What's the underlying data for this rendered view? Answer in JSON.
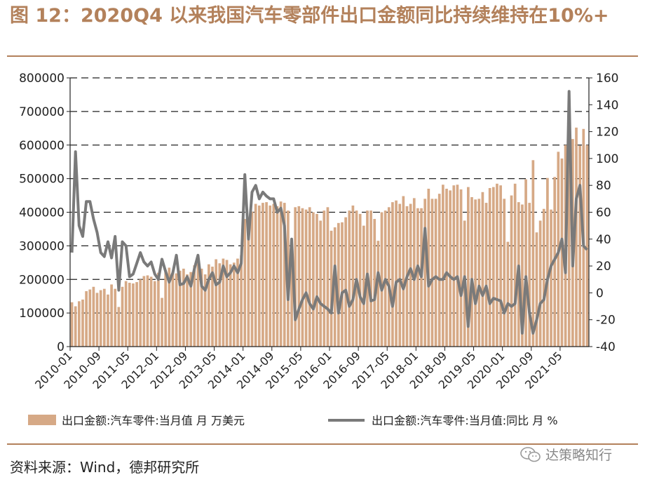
{
  "page": {
    "title": "图 12：2020Q4 以来我国汽车零部件出口金额同比持续维持在10%+",
    "source": "资料来源：Wind，德邦研究所",
    "watermark": "达策略知行"
  },
  "colors": {
    "bar": "#d6a986",
    "line": "#7a7a7a",
    "accent": "#b3815b",
    "grid": "#222222"
  },
  "chart_data": {
    "type": "bar+line",
    "x": [
      "2010-01",
      "2010-02",
      "2010-03",
      "2010-04",
      "2010-05",
      "2010-06",
      "2010-07",
      "2010-08",
      "2010-09",
      "2010-10",
      "2010-11",
      "2010-12",
      "2011-01",
      "2011-02",
      "2011-03",
      "2011-04",
      "2011-05",
      "2011-06",
      "2011-07",
      "2011-08",
      "2011-09",
      "2011-10",
      "2011-11",
      "2011-12",
      "2012-01",
      "2012-02",
      "2012-03",
      "2012-04",
      "2012-05",
      "2012-06",
      "2012-07",
      "2012-08",
      "2012-09",
      "2012-10",
      "2012-11",
      "2012-12",
      "2013-01",
      "2013-02",
      "2013-03",
      "2013-04",
      "2013-05",
      "2013-06",
      "2013-07",
      "2013-08",
      "2013-09",
      "2013-10",
      "2013-11",
      "2013-12",
      "2014-01",
      "2014-02",
      "2014-03",
      "2014-04",
      "2014-05",
      "2014-06",
      "2014-07",
      "2014-08",
      "2014-09",
      "2014-10",
      "2014-11",
      "2014-12",
      "2015-01",
      "2015-02",
      "2015-03",
      "2015-04",
      "2015-05",
      "2015-06",
      "2015-07",
      "2015-08",
      "2015-09",
      "2015-10",
      "2015-11",
      "2015-12",
      "2016-01",
      "2016-02",
      "2016-03",
      "2016-04",
      "2016-05",
      "2016-06",
      "2016-07",
      "2016-08",
      "2016-09",
      "2016-10",
      "2016-11",
      "2016-12",
      "2017-01",
      "2017-02",
      "2017-03",
      "2017-04",
      "2017-05",
      "2017-06",
      "2017-07",
      "2017-08",
      "2017-09",
      "2017-10",
      "2017-11",
      "2017-12",
      "2018-01",
      "2018-02",
      "2018-03",
      "2018-04",
      "2018-05",
      "2018-06",
      "2018-07",
      "2018-08",
      "2018-09",
      "2018-10",
      "2018-11",
      "2018-12",
      "2019-01",
      "2019-02",
      "2019-03",
      "2019-04",
      "2019-05",
      "2019-06",
      "2019-07",
      "2019-08",
      "2019-09",
      "2019-10",
      "2019-11",
      "2019-12",
      "2020-01",
      "2020-02",
      "2020-03",
      "2020-04",
      "2020-05",
      "2020-06",
      "2020-07",
      "2020-08",
      "2020-09",
      "2020-10",
      "2020-11",
      "2020-12",
      "2021-01",
      "2021-02",
      "2021-03",
      "2021-04",
      "2021-05",
      "2021-06",
      "2021-07",
      "2021-08",
      "2021-09",
      "2021-10",
      "2021-11",
      "2021-12"
    ],
    "x_tick_labels": [
      "2010-01",
      "2010-09",
      "2011-05",
      "2012-01",
      "2012-09",
      "2013-05",
      "2014-01",
      "2014-09",
      "2015-05",
      "2016-01",
      "2016-09",
      "2017-05",
      "2018-01",
      "2018-09",
      "2019-05",
      "2020-01",
      "2020-09",
      "2021-05"
    ],
    "series": [
      {
        "name": "出口金额:汽车零件:当月值 月 万美元",
        "axis": "left",
        "kind": "bar",
        "values": [
          132000,
          120000,
          135000,
          140000,
          165000,
          170000,
          178000,
          160000,
          168000,
          172000,
          155000,
          185000,
          172000,
          118000,
          178000,
          195000,
          190000,
          188000,
          192000,
          200000,
          210000,
          212000,
          208000,
          195000,
          220000,
          145000,
          228000,
          235000,
          222000,
          218000,
          226000,
          232000,
          215000,
          222000,
          242000,
          248000,
          232000,
          215000,
          245000,
          238000,
          260000,
          248000,
          262000,
          258000,
          245000,
          250000,
          262000,
          272000,
          380000,
          338000,
          402000,
          425000,
          420000,
          428000,
          430000,
          420000,
          425000,
          418000,
          432000,
          428000,
          405000,
          310000,
          415000,
          418000,
          412000,
          408000,
          415000,
          400000,
          395000,
          375000,
          405000,
          415000,
          345000,
          355000,
          368000,
          370000,
          385000,
          405000,
          420000,
          405000,
          395000,
          360000,
          405000,
          405000,
          380000,
          315000,
          400000,
          405000,
          415000,
          430000,
          435000,
          425000,
          448000,
          418000,
          425000,
          442000,
          412000,
          412000,
          440000,
          470000,
          440000,
          440000,
          455000,
          482000,
          470000,
          465000,
          480000,
          482000,
          468000,
          375000,
          475000,
          445000,
          438000,
          440000,
          460000,
          428000,
          472000,
          475000,
          485000,
          480000,
          440000,
          312000,
          450000,
          485000,
          430000,
          423000,
          498000,
          428000,
          555000,
          340000,
          375000,
          410000,
          502000,
          408000,
          505000,
          580000,
          560000,
          600000,
          598000,
          618000,
          652000,
          598000,
          648000,
          600000
        ]
      },
      {
        "name": "出口金额:汽车零件:当月值:同比 月 %",
        "axis": "right",
        "kind": "line",
        "values": [
          30,
          105,
          50,
          42,
          68,
          68,
          55,
          45,
          30,
          27,
          38,
          26,
          42,
          2,
          38,
          35,
          12,
          14,
          22,
          30,
          23,
          20,
          23,
          14,
          10,
          25,
          16,
          8,
          15,
          28,
          6,
          7,
          12,
          5,
          18,
          28,
          5,
          2,
          10,
          15,
          6,
          8,
          20,
          12,
          15,
          20,
          15,
          22,
          88,
          40,
          75,
          80,
          70,
          75,
          72,
          70,
          70,
          60,
          63,
          50,
          -5,
          40,
          -20,
          -12,
          -5,
          0,
          -8,
          -12,
          -3,
          -8,
          -10,
          -12,
          -15,
          20,
          -15,
          0,
          2,
          -10,
          -5,
          10,
          -3,
          -8,
          14,
          -6,
          -5,
          15,
          2,
          10,
          5,
          -10,
          8,
          10,
          3,
          12,
          18,
          10,
          20,
          12,
          48,
          5,
          10,
          12,
          10,
          10,
          15,
          12,
          10,
          12,
          -2,
          12,
          -25,
          10,
          -8,
          5,
          -2,
          5,
          -8,
          -4,
          -5,
          -6,
          -15,
          -8,
          -10,
          -8,
          20,
          -30,
          12,
          -15,
          -30,
          -20,
          -8,
          -5,
          10,
          20,
          25,
          30,
          40,
          15,
          150,
          20,
          70,
          80,
          35,
          32
        ]
      }
    ],
    "y_left": {
      "ticks": [
        "0",
        "100000",
        "200000",
        "300000",
        "400000",
        "500000",
        "600000",
        "700000",
        "800000"
      ],
      "ylim": [
        0,
        800000
      ]
    },
    "y_right": {
      "ticks": [
        "-40",
        "-20",
        "0",
        "20",
        "40",
        "60",
        "80",
        "100",
        "120",
        "140",
        "160"
      ],
      "ylim": [
        -40,
        160
      ]
    },
    "gridlines": "dashed-horizontal",
    "legend_position": "bottom"
  }
}
